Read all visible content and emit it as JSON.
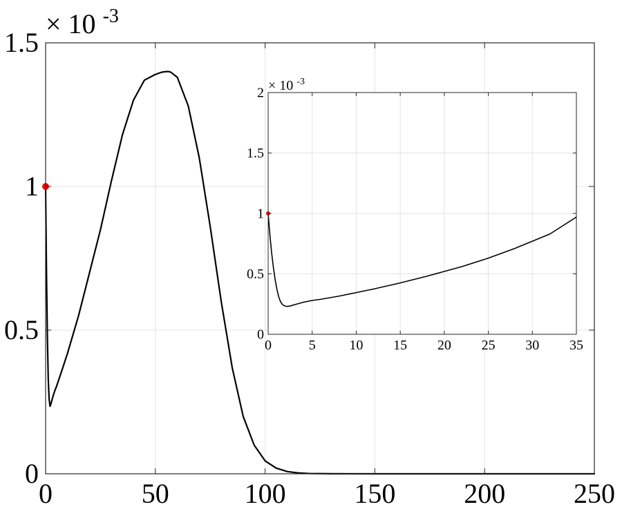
{
  "chart_data": [
    {
      "type": "line",
      "title": "",
      "xlabel": "",
      "ylabel": "",
      "xlim": [
        0,
        250
      ],
      "ylim": [
        0,
        1.5
      ],
      "y_exponent_label": "× 10",
      "y_exponent_power": "-3",
      "grid": true,
      "xticks": [
        "0",
        "50",
        "100",
        "150",
        "200",
        "250"
      ],
      "yticks": [
        "0",
        "0.5",
        "1",
        "1.5"
      ],
      "series": [
        {
          "x": [
            0,
            0.4,
            0.8,
            1.2,
            1.6,
            2,
            2.5,
            3,
            4,
            5,
            7,
            10,
            15,
            20,
            25,
            30,
            35,
            40,
            45,
            50,
            53,
            55,
            56,
            57,
            60,
            65,
            70,
            75,
            80,
            85,
            90,
            95,
            100,
            105,
            110,
            115,
            120,
            130,
            140,
            150,
            200,
            250
          ],
          "y": [
            1.0,
            0.7,
            0.48,
            0.33,
            0.26,
            0.235,
            0.245,
            0.26,
            0.285,
            0.305,
            0.35,
            0.42,
            0.55,
            0.7,
            0.85,
            1.02,
            1.18,
            1.3,
            1.37,
            1.39,
            1.398,
            1.4,
            1.4,
            1.398,
            1.38,
            1.28,
            1.1,
            0.86,
            0.6,
            0.37,
            0.2,
            0.1,
            0.045,
            0.02,
            0.008,
            0.003,
            0.001,
            0.0003,
            0.0001,
            0.0,
            0.0,
            0.0
          ],
          "color": "#000000"
        }
      ],
      "markers": [
        {
          "x": 0,
          "y": 1.0,
          "color": "#ff0000"
        }
      ]
    },
    {
      "type": "line",
      "title": "",
      "xlabel": "",
      "ylabel": "",
      "xlim": [
        0,
        35
      ],
      "ylim": [
        0,
        2
      ],
      "y_exponent_label": "× 10",
      "y_exponent_power": "-3",
      "grid": true,
      "xticks": [
        "0",
        "5",
        "10",
        "15",
        "20",
        "25",
        "30",
        "35"
      ],
      "yticks": [
        "0",
        "0.5",
        "1",
        "1.5",
        "2"
      ],
      "series": [
        {
          "x": [
            0,
            0.2,
            0.4,
            0.6,
            0.8,
            1.0,
            1.2,
            1.4,
            1.6,
            1.8,
            2.0,
            2.2,
            2.5,
            3,
            3.5,
            4,
            5,
            6,
            8,
            10,
            12,
            15,
            18,
            20,
            22,
            25,
            28,
            30,
            32,
            35
          ],
          "y": [
            1.0,
            0.82,
            0.67,
            0.55,
            0.45,
            0.37,
            0.31,
            0.27,
            0.248,
            0.237,
            0.232,
            0.231,
            0.234,
            0.245,
            0.255,
            0.265,
            0.28,
            0.29,
            0.315,
            0.345,
            0.375,
            0.425,
            0.48,
            0.52,
            0.56,
            0.63,
            0.71,
            0.77,
            0.83,
            0.97
          ],
          "color": "#000000"
        }
      ],
      "markers": [
        {
          "x": 0,
          "y": 1.0,
          "color": "#ff0000"
        }
      ]
    }
  ]
}
